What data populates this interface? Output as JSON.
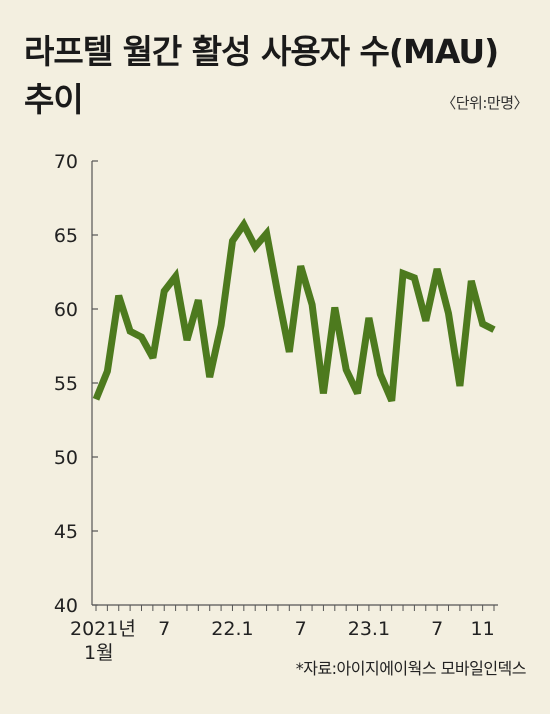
{
  "header": {
    "title_line1": "라프텔 월간 활성 사용자 수(MAU)",
    "title_line2": "추이",
    "unit": "〈단위:만명〉"
  },
  "footer": {
    "source": "*자료:아이지에이웍스 모바일인덱스"
  },
  "chart_data": {
    "type": "line",
    "title": "라프텔 월간 활성 사용자 수(MAU) 추이",
    "unit": "〈단위:만명〉",
    "ylim": [
      40,
      70
    ],
    "yticks": [
      40,
      45,
      50,
      55,
      60,
      65,
      70
    ],
    "x_tick_labels": [
      {
        "index": 0,
        "lines": [
          "2021년",
          "1월"
        ]
      },
      {
        "index": 6,
        "lines": [
          "7"
        ]
      },
      {
        "index": 12,
        "lines": [
          "22.1"
        ]
      },
      {
        "index": 18,
        "lines": [
          "7"
        ]
      },
      {
        "index": 24,
        "lines": [
          "23.1"
        ]
      },
      {
        "index": 30,
        "lines": [
          "7"
        ]
      },
      {
        "index": 34,
        "lines": [
          "11"
        ]
      }
    ],
    "color": "#4d7a1e",
    "series": [
      {
        "name": "",
        "values": [
          53.9,
          55.8,
          60.9,
          58.5,
          58.1,
          56.7,
          61.2,
          62.2,
          57.9,
          60.6,
          55.4,
          58.9,
          64.6,
          65.7,
          64.2,
          65.1,
          61.0,
          57.1,
          62.9,
          60.3,
          54.3,
          60.1,
          55.9,
          54.3,
          59.4,
          55.6,
          53.8,
          62.4,
          62.1,
          59.2,
          62.7,
          59.7,
          54.8,
          61.9,
          59.0,
          58.6
        ]
      }
    ],
    "grid": false
  }
}
